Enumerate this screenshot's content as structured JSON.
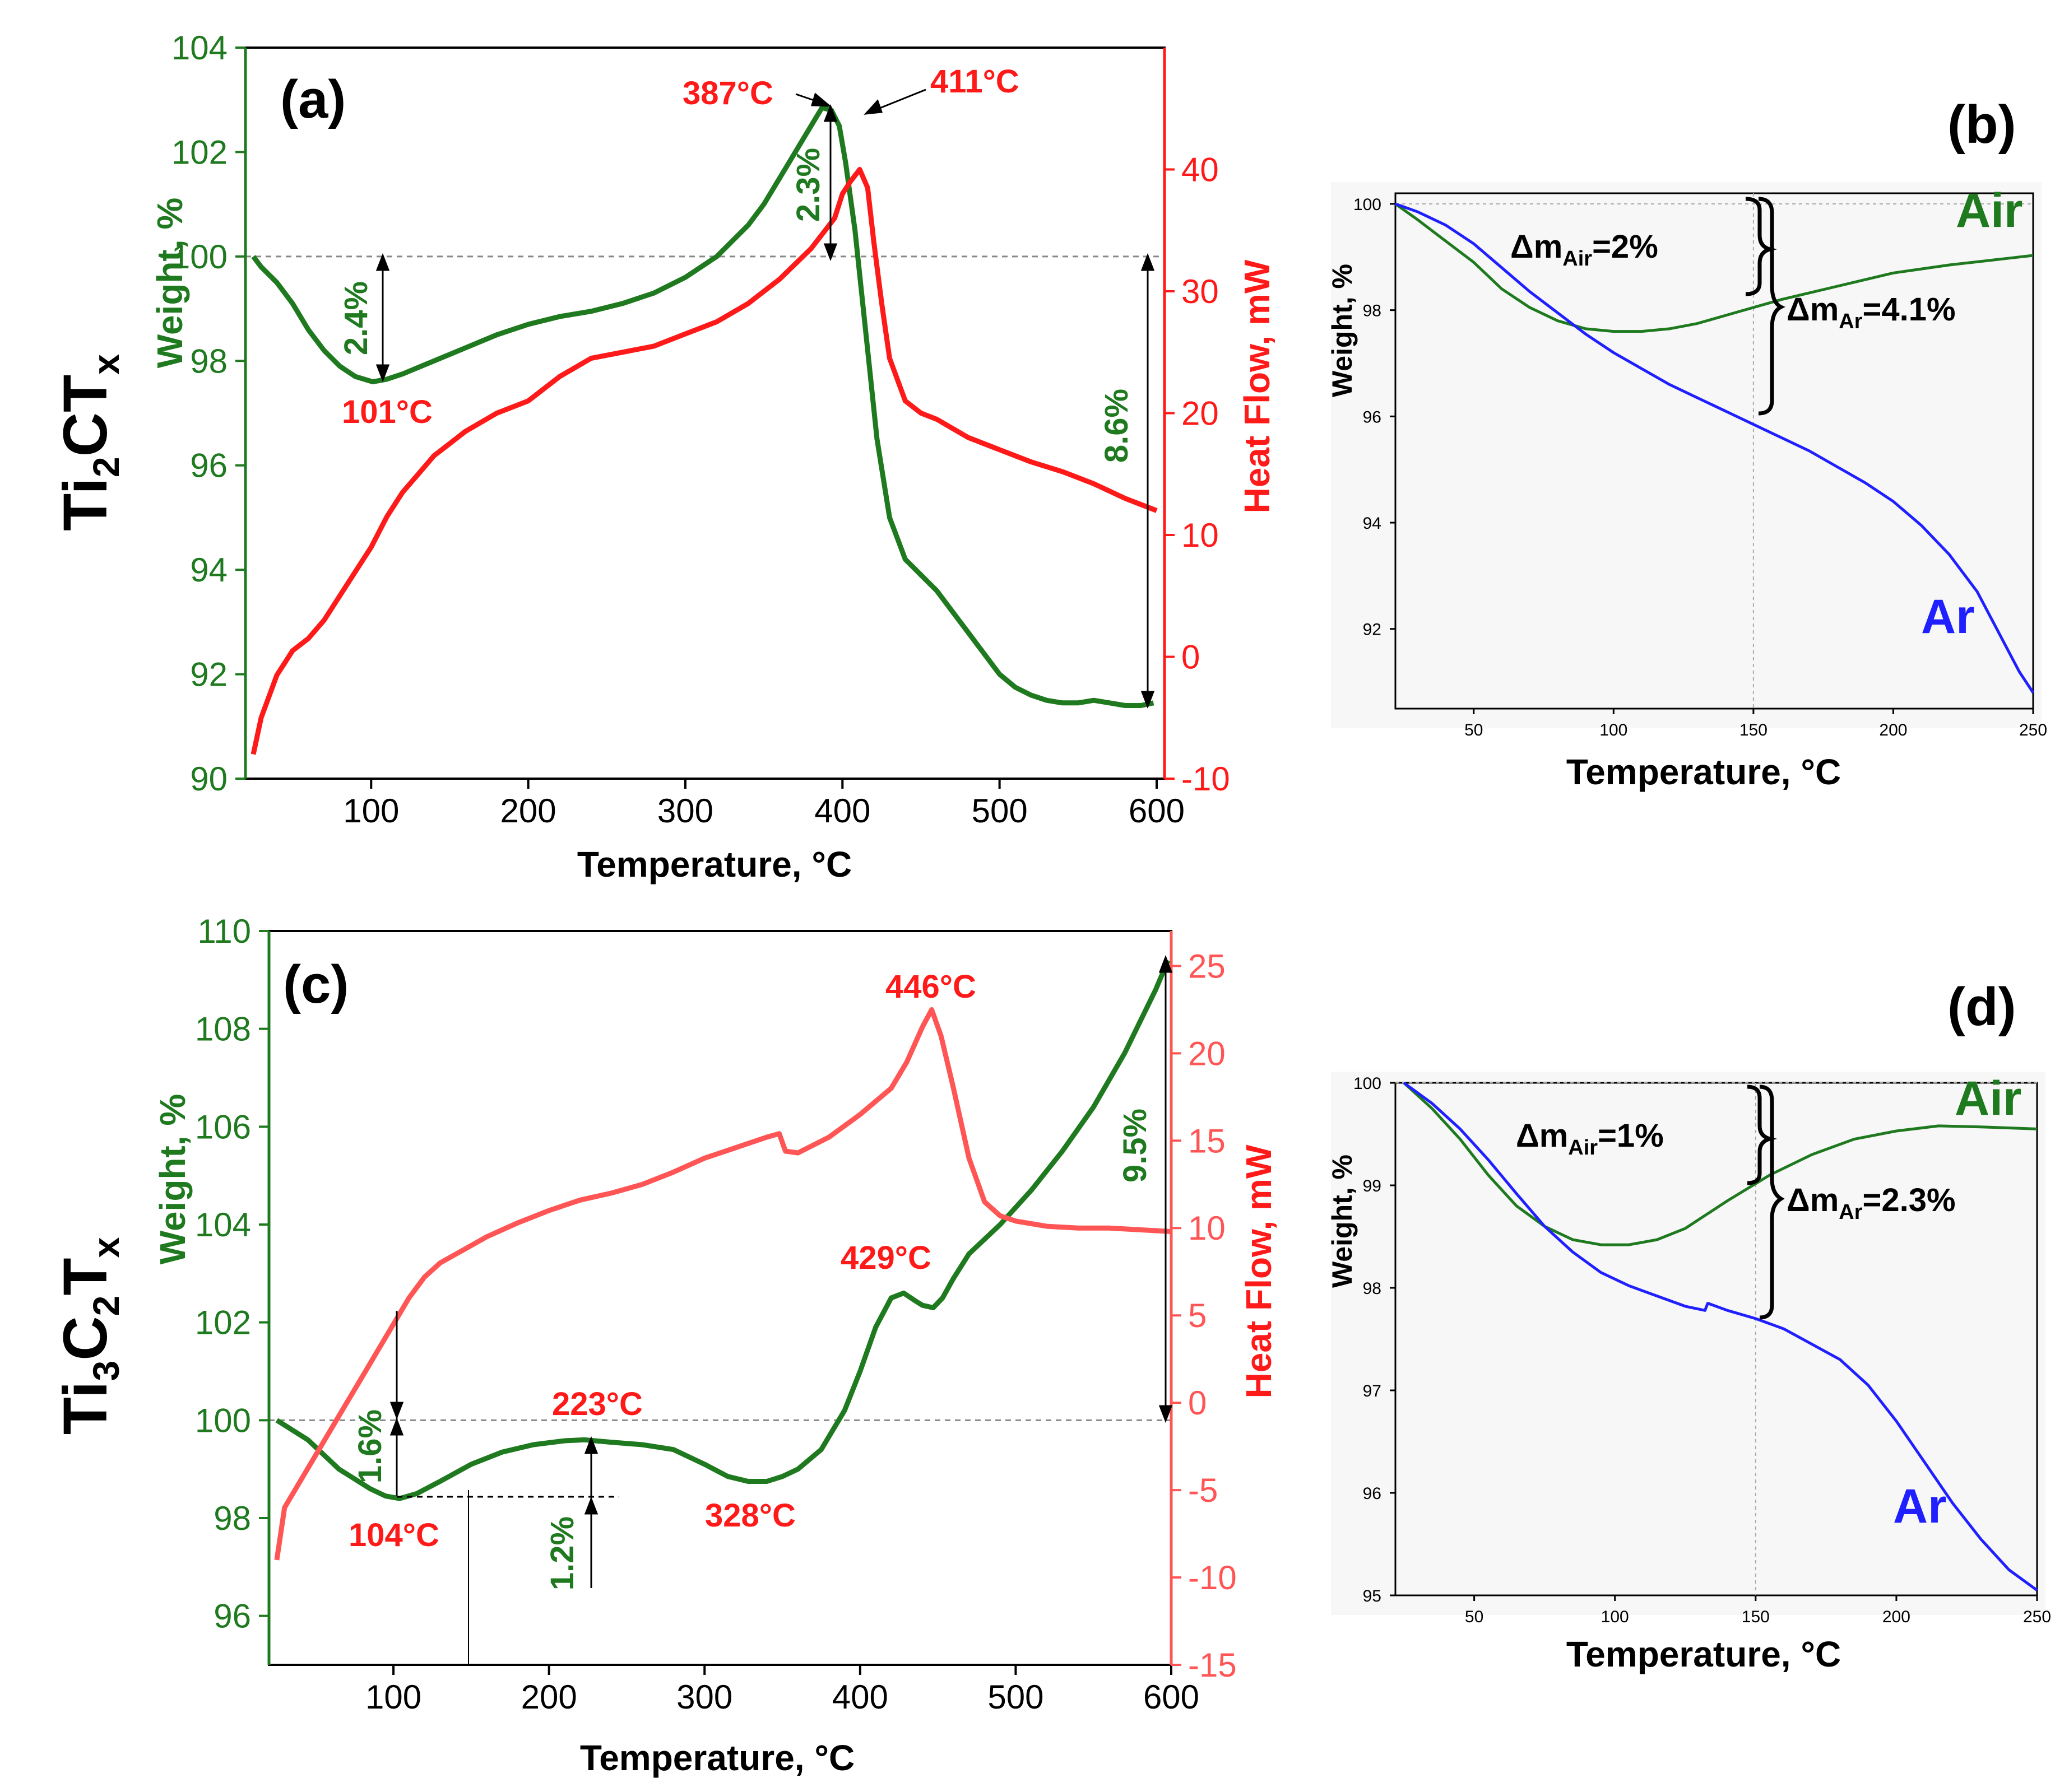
{
  "colors": {
    "weight": "#1f7a1f",
    "heat": "#ff1a1a",
    "heat_light": "#ff5555",
    "air": "#1f7a1f",
    "ar": "#1f1fff",
    "black": "#000000",
    "grid": "#888888"
  },
  "chart_data": [
    {
      "panel": "(a)",
      "type": "line",
      "side_label": {
        "base1": "Ti",
        "sub1": "2",
        "base2": "CT",
        "sub2": "x"
      },
      "xlabel": "Temperature, °C",
      "ylabel": "Weight, %",
      "y2label": "Heat  Flow, mW",
      "xlim": [
        20,
        605
      ],
      "ylim": [
        90,
        104
      ],
      "y2lim": [
        -10,
        50
      ],
      "xticks": [
        100,
        200,
        300,
        400,
        500,
        600
      ],
      "yticks": [
        90,
        92,
        94,
        96,
        98,
        100,
        102,
        104
      ],
      "y2ticks": [
        -10,
        0,
        10,
        20,
        30,
        40
      ],
      "reference_y": 100,
      "series": [
        {
          "name": "Weight",
          "axis": "left",
          "color": "#1f7a1f",
          "x": [
            25,
            30,
            40,
            50,
            60,
            70,
            80,
            90,
            101,
            110,
            120,
            140,
            160,
            180,
            200,
            220,
            240,
            260,
            280,
            300,
            320,
            340,
            350,
            360,
            370,
            380,
            387,
            393,
            398,
            402,
            408,
            415,
            422,
            430,
            440,
            450,
            460,
            470,
            480,
            490,
            500,
            510,
            520,
            530,
            540,
            550,
            560,
            570,
            580,
            590,
            598
          ],
          "y": [
            100.0,
            99.8,
            99.5,
            99.1,
            98.6,
            98.2,
            97.9,
            97.7,
            97.6,
            97.65,
            97.75,
            98.0,
            98.25,
            98.5,
            98.7,
            98.85,
            98.95,
            99.1,
            99.3,
            99.6,
            100.0,
            100.6,
            101.0,
            101.5,
            102.0,
            102.5,
            102.85,
            102.8,
            102.5,
            101.8,
            100.5,
            98.5,
            96.5,
            95.0,
            94.2,
            93.9,
            93.6,
            93.2,
            92.8,
            92.4,
            92.0,
            91.75,
            91.6,
            91.5,
            91.45,
            91.45,
            91.5,
            91.45,
            91.4,
            91.4,
            91.45
          ]
        },
        {
          "name": "Heat Flow",
          "axis": "right",
          "color": "#ff1a1a",
          "x": [
            25,
            30,
            40,
            50,
            60,
            70,
            80,
            90,
            100,
            110,
            120,
            130,
            140,
            150,
            160,
            180,
            200,
            220,
            240,
            260,
            280,
            300,
            320,
            340,
            360,
            380,
            395,
            400,
            405,
            411,
            416,
            420,
            425,
            430,
            440,
            450,
            460,
            480,
            500,
            520,
            540,
            560,
            580,
            600
          ],
          "y": [
            -8,
            -5,
            -1.5,
            0.5,
            1.5,
            3,
            5,
            7,
            9,
            11.5,
            13.5,
            15,
            16.5,
            17.5,
            18.5,
            20,
            21,
            23,
            24.5,
            25,
            25.5,
            26.5,
            27.5,
            29,
            31,
            33.5,
            36,
            38,
            39,
            40,
            38.5,
            34,
            29,
            24.5,
            21,
            20,
            19.5,
            18,
            17,
            16,
            15.2,
            14.2,
            13,
            12
          ]
        }
      ],
      "annotations": [
        {
          "text": "101°C",
          "color": "#ff1a1a"
        },
        {
          "text": "2.4%",
          "color": "#1f7a1f"
        },
        {
          "text": "387°C",
          "color": "#ff1a1a"
        },
        {
          "text": "411°C",
          "color": "#ff1a1a"
        },
        {
          "text": "2.3%",
          "color": "#1f7a1f"
        },
        {
          "text": "8.6%",
          "color": "#1f7a1f"
        }
      ]
    },
    {
      "panel": "(b)",
      "type": "line",
      "xlabel": "Temperature, °C",
      "ylabel": "Weight, %",
      "xlim": [
        22,
        250
      ],
      "ylim": [
        90.5,
        100.2
      ],
      "xticks": [
        50,
        100,
        150,
        200,
        250
      ],
      "yticks": [
        92,
        94,
        96,
        98,
        100
      ],
      "reference_y": 100,
      "reference_x": 150,
      "series": [
        {
          "name": "Air",
          "color": "#1f7a1f",
          "x": [
            22,
            30,
            40,
            50,
            60,
            70,
            80,
            90,
            100,
            110,
            120,
            130,
            140,
            150,
            160,
            180,
            200,
            220,
            240,
            250
          ],
          "y": [
            100.0,
            99.7,
            99.3,
            98.9,
            98.4,
            98.05,
            97.8,
            97.65,
            97.6,
            97.6,
            97.65,
            97.75,
            97.9,
            98.05,
            98.2,
            98.45,
            98.7,
            98.85,
            98.97,
            99.03
          ]
        },
        {
          "name": "Ar",
          "color": "#1f1fff",
          "x": [
            22,
            30,
            40,
            50,
            60,
            70,
            80,
            90,
            100,
            110,
            120,
            130,
            140,
            150,
            160,
            170,
            180,
            190,
            200,
            210,
            220,
            230,
            240,
            245,
            250
          ],
          "y": [
            100.0,
            99.85,
            99.6,
            99.25,
            98.8,
            98.35,
            97.95,
            97.55,
            97.2,
            96.9,
            96.6,
            96.35,
            96.1,
            95.85,
            95.6,
            95.35,
            95.05,
            94.75,
            94.4,
            93.95,
            93.4,
            92.7,
            91.7,
            91.2,
            90.8
          ]
        }
      ],
      "annotations": [
        {
          "text": "Δm",
          "sub": "Air",
          "rest": "=2%"
        },
        {
          "text": "Δm",
          "sub": "Ar",
          "rest": "=4.1%"
        },
        {
          "text": "Air"
        },
        {
          "text": "Ar"
        }
      ]
    },
    {
      "panel": "(c)",
      "type": "line",
      "side_label": {
        "base1": "Ti",
        "sub1": "3",
        "base2": "C",
        "sub2": "2",
        "base3": "T",
        "sub3": "x"
      },
      "xlabel": "Temperature, °C",
      "ylabel": "Weight, %",
      "y2label": "Heat  Flow, mW",
      "xlim": [
        20,
        600
      ],
      "ylim": [
        95,
        110
      ],
      "y2lim": [
        -15,
        27
      ],
      "xticks": [
        100,
        200,
        300,
        400,
        500,
        600
      ],
      "yticks": [
        96,
        98,
        100,
        102,
        104,
        106,
        108,
        110
      ],
      "y2ticks": [
        -15,
        -10,
        -5,
        0,
        5,
        10,
        15,
        20,
        25
      ],
      "reference_y": 100,
      "series": [
        {
          "name": "Weight",
          "axis": "left",
          "color": "#1f7a1f",
          "x": [
            25,
            35,
            45,
            55,
            65,
            75,
            85,
            95,
            104,
            115,
            130,
            150,
            170,
            190,
            210,
            223,
            240,
            260,
            280,
            300,
            315,
            328,
            340,
            350,
            360,
            375,
            390,
            400,
            410,
            420,
            428,
            435,
            440,
            447,
            453,
            460,
            470,
            490,
            510,
            530,
            550,
            570,
            590,
            598
          ],
          "y": [
            100.0,
            99.8,
            99.6,
            99.3,
            99.0,
            98.8,
            98.6,
            98.45,
            98.4,
            98.5,
            98.75,
            99.1,
            99.35,
            99.5,
            99.58,
            99.6,
            99.55,
            99.5,
            99.4,
            99.1,
            98.85,
            98.75,
            98.75,
            98.85,
            99.0,
            99.4,
            100.2,
            101.0,
            101.9,
            102.5,
            102.6,
            102.45,
            102.35,
            102.3,
            102.5,
            102.9,
            103.4,
            104.0,
            104.7,
            105.5,
            106.4,
            107.5,
            108.8,
            109.4
          ]
        },
        {
          "name": "Heat Flow",
          "axis": "right",
          "color": "#ff5555",
          "x": [
            25,
            30,
            40,
            50,
            60,
            70,
            80,
            90,
            100,
            110,
            120,
            130,
            140,
            150,
            160,
            180,
            200,
            220,
            240,
            260,
            280,
            300,
            320,
            340,
            348,
            352,
            360,
            380,
            400,
            420,
            430,
            440,
            446,
            452,
            460,
            470,
            480,
            490,
            500,
            520,
            540,
            560,
            580,
            600
          ],
          "y": [
            -9,
            -6,
            -4.5,
            -3,
            -1.5,
            0,
            1.5,
            3,
            4.5,
            6,
            7.2,
            8,
            8.5,
            9,
            9.5,
            10.3,
            11,
            11.6,
            12,
            12.5,
            13.2,
            14,
            14.6,
            15.2,
            15.4,
            14.4,
            14.3,
            15.2,
            16.5,
            18,
            19.5,
            21.5,
            22.5,
            21,
            18,
            14,
            11.5,
            10.7,
            10.4,
            10.1,
            10,
            10,
            9.9,
            9.8
          ]
        }
      ],
      "annotations": [
        {
          "text": "104°C",
          "color": "#ff1a1a"
        },
        {
          "text": "1.6%",
          "color": "#1f7a1f"
        },
        {
          "text": "1.2%",
          "color": "#1f7a1f"
        },
        {
          "text": "223°C",
          "color": "#ff1a1a"
        },
        {
          "text": "328°C",
          "color": "#ff1a1a"
        },
        {
          "text": "429°C",
          "color": "#ff1a1a"
        },
        {
          "text": "446°C",
          "color": "#ff1a1a"
        },
        {
          "text": "9.5%",
          "color": "#1f7a1f"
        }
      ]
    },
    {
      "panel": "(d)",
      "type": "line",
      "xlabel": "Temperature, °C",
      "ylabel": "Weight, %",
      "xlim": [
        22,
        250
      ],
      "ylim": [
        95,
        100
      ],
      "xticks": [
        50,
        100,
        150,
        200,
        250
      ],
      "yticks": [
        95,
        96,
        97,
        98,
        99,
        100
      ],
      "reference_y": 100,
      "reference_x": 150,
      "series": [
        {
          "name": "Air",
          "color": "#1f7a1f",
          "x": [
            25,
            35,
            45,
            55,
            65,
            75,
            85,
            95,
            105,
            115,
            125,
            140,
            155,
            170,
            185,
            200,
            215,
            230,
            250
          ],
          "y": [
            100.0,
            99.75,
            99.45,
            99.1,
            98.8,
            98.6,
            98.47,
            98.42,
            98.42,
            98.47,
            98.58,
            98.85,
            99.1,
            99.3,
            99.45,
            99.53,
            99.58,
            99.57,
            99.55
          ]
        },
        {
          "name": "Ar",
          "color": "#1f1fff",
          "x": [
            25,
            35,
            45,
            55,
            65,
            75,
            85,
            95,
            105,
            115,
            125,
            132,
            133,
            140,
            150,
            160,
            170,
            180,
            190,
            200,
            210,
            220,
            230,
            240,
            250
          ],
          "y": [
            100.0,
            99.8,
            99.55,
            99.25,
            98.92,
            98.6,
            98.35,
            98.15,
            98.02,
            97.92,
            97.82,
            97.78,
            97.85,
            97.78,
            97.7,
            97.6,
            97.45,
            97.3,
            97.05,
            96.7,
            96.3,
            95.9,
            95.55,
            95.25,
            95.05
          ]
        }
      ],
      "annotations": [
        {
          "text": "Δm",
          "sub": "Air",
          "rest": "=1%"
        },
        {
          "text": "Δm",
          "sub": "Ar",
          "rest": "=2.3%"
        },
        {
          "text": "Air"
        },
        {
          "text": "Ar"
        }
      ]
    }
  ]
}
